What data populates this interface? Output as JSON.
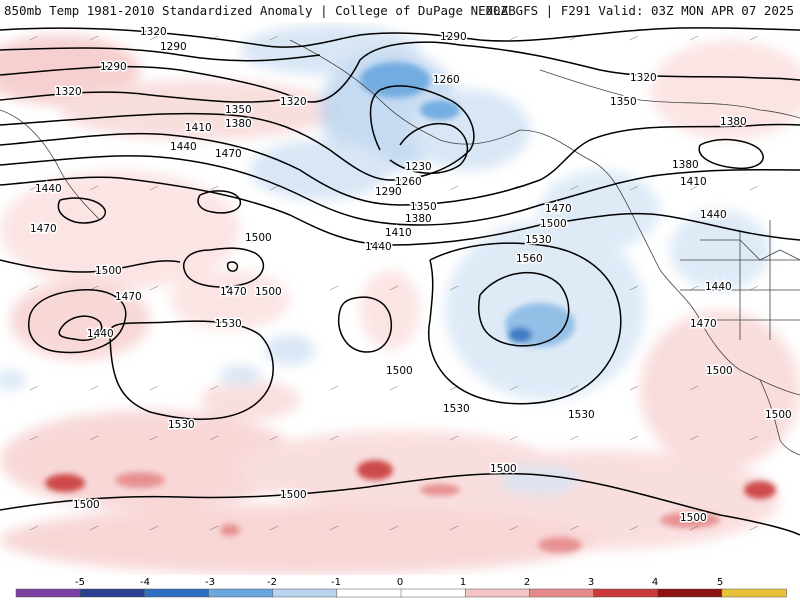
{
  "header": {
    "title": "850mb Temp 1981-2010 Standardized Anomaly | College of DuPage NEXLAB",
    "run_info": "00Z GFS | F291 Valid: 03Z MON APR 07 2025"
  },
  "contour_labels": [
    "1320",
    "1290",
    "1290",
    "1320",
    "1350",
    "1380",
    "1410",
    "1440",
    "1470",
    "1320",
    "1290",
    "1260",
    "1230",
    "1260",
    "1290",
    "1350",
    "1380",
    "1410",
    "1440",
    "1320",
    "1350",
    "1380",
    "1380",
    "1410",
    "1440",
    "1440",
    "1470",
    "1500",
    "1500",
    "1470",
    "1500",
    "1470",
    "1440",
    "1530",
    "1530",
    "1470",
    "1500",
    "1530",
    "1560",
    "1500",
    "1530",
    "1530",
    "1440",
    "1470",
    "1500",
    "1500",
    "1500",
    "1500",
    "1500",
    "1500"
  ],
  "colorbar": {
    "ticks": [
      "-5",
      "-4",
      "-3",
      "-2",
      "-1",
      "0",
      "1",
      "2",
      "3",
      "4",
      "5"
    ],
    "colors": [
      "#7a3fa0",
      "#2a3f8f",
      "#2e6fc2",
      "#6aa7df",
      "#b9d3ef",
      "#ffffff",
      "#ffffff",
      "#f5c4c4",
      "#e58a8a",
      "#c93a3a",
      "#8c1212",
      "#e8c13a"
    ]
  }
}
